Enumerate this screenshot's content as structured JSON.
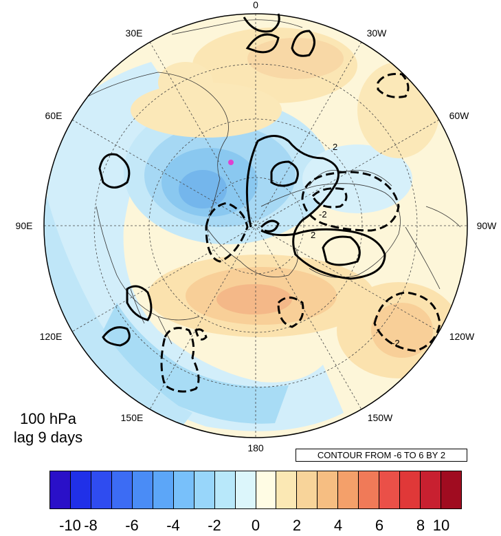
{
  "map": {
    "longitude_labels": [
      "0",
      "30W",
      "60W",
      "90W",
      "120W",
      "150W",
      "180",
      "150E",
      "120E",
      "90E",
      "60E",
      "30E"
    ],
    "contour_labels": [
      "2",
      "2",
      "-2",
      "-2"
    ],
    "marker_color": "#e040d0"
  },
  "info": {
    "level": "100 hPa",
    "lag": "lag 9 days"
  },
  "contour_note": "CONTOUR FROM -6 TO 6 BY 2",
  "colorbar": {
    "colors": [
      "#2a10c8",
      "#2030e8",
      "#2f4cf0",
      "#3c6cf4",
      "#4a8cf6",
      "#5ca6f8",
      "#78c0fa",
      "#98d6fa",
      "#b8e8fa",
      "#dcf6fb",
      "#fffce4",
      "#fbe8b4",
      "#f8d49a",
      "#f6be82",
      "#f4a06a",
      "#f07a58",
      "#ea5048",
      "#e03838",
      "#c82030",
      "#a00c20"
    ],
    "labels": [
      "-10",
      "-8",
      "-6",
      "-4",
      "-2",
      "0",
      "2",
      "4",
      "6",
      "8",
      "10"
    ]
  }
}
